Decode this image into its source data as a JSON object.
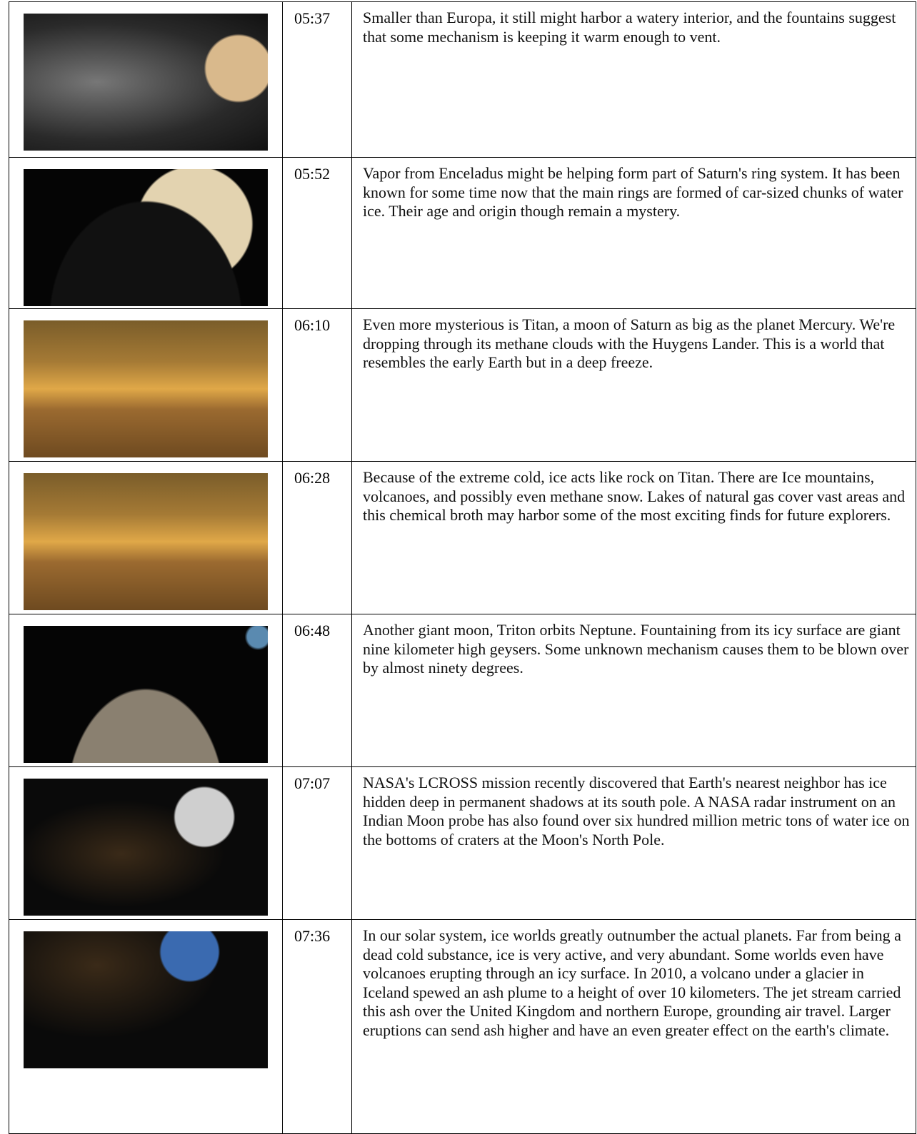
{
  "table": {
    "rows": [
      {
        "time": "05:37",
        "text": "Smaller than Europa, it still might harbor a watery interior, and the fountains suggest that some mechanism is keeping it warm enough to vent."
      },
      {
        "time": "05:52",
        "text": "Vapor from Enceladus might be helping form part of Saturn's ring system. It has been known for some time now that the main rings are formed of car-sized chunks of water ice. Their age and origin though remain a mystery."
      },
      {
        "time": "06:10",
        "text": "Even more mysterious is Titan, a moon of Saturn as big as the planet Mercury. We're dropping through its methane clouds with the Huygens Lander. This is a world that resembles the early Earth but in a deep freeze."
      },
      {
        "time": "06:28",
        "text": "Because of the extreme cold, ice acts like rock on Titan. There are Ice mountains, volcanoes, and possibly even methane snow. Lakes of natural gas cover vast areas and this chemical broth may harbor some of the most exciting finds for future explorers."
      },
      {
        "time": "06:48",
        "text": "Another giant moon, Triton orbits Neptune. Fountaining from its icy surface are giant nine kilometer high geysers. Some unknown mechanism causes them to be blown over by almost ninety degrees."
      },
      {
        "time": "07:07",
        "text": "NASA's LCROSS mission recently discovered that Earth's nearest neighbor has ice hidden deep in permanent shadows at its south pole. A NASA radar instrument on an Indian Moon probe has also found over six hundred million metric tons of water ice on the bottoms of craters at the Moon's North Pole."
      },
      {
        "time": "07:36",
        "text": "In our solar system, ice worlds greatly outnumber the actual planets. Far from being a dead cold substance, ice is very active, and very abundant. Some worlds even have volcanoes erupting through an icy surface. In 2010, a volcano under a glacier in Iceland spewed an ash plume to a height of over 10 kilometers. The jet stream carried this ash over the United Kingdom and northern Europe, grounding air travel. Larger eruptions can send ash higher and have an even greater effect on the earth's climate."
      }
    ]
  }
}
